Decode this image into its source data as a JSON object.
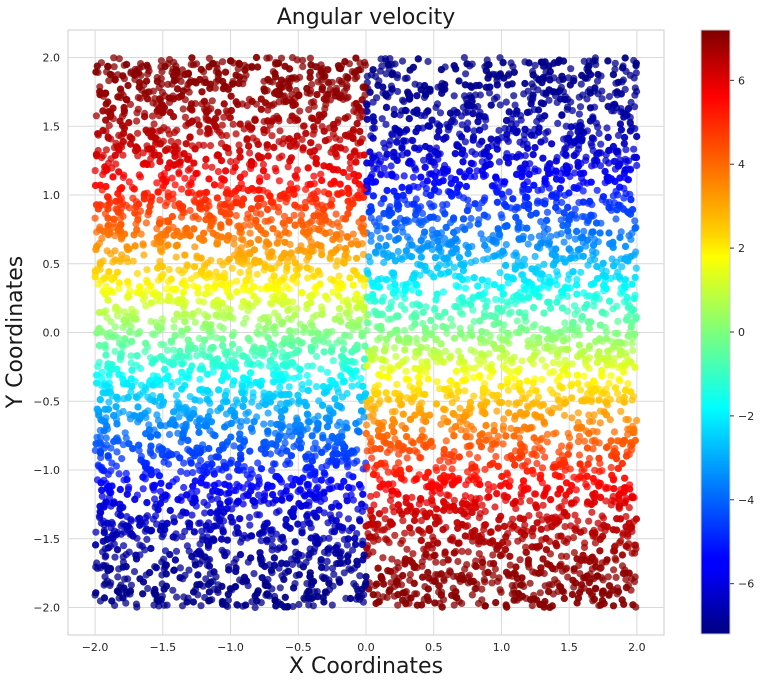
{
  "chart_data": {
    "type": "scatter",
    "title": "Angular velocity",
    "xlabel": "X Coordinates",
    "ylabel": "Y Coordinates",
    "xlim": [
      -2.2,
      2.2
    ],
    "ylim": [
      -2.2,
      2.2
    ],
    "xticks": [
      -2.0,
      -1.5,
      -1.0,
      -0.5,
      0.0,
      0.5,
      1.0,
      1.5,
      2.0
    ],
    "xtick_labels": [
      "−2.0",
      "−1.5",
      "−1.0",
      "−0.5",
      "0.0",
      "0.5",
      "1.0",
      "1.5",
      "2.0"
    ],
    "yticks": [
      -2.0,
      -1.5,
      -1.0,
      -0.5,
      0.0,
      0.5,
      1.0,
      1.5,
      2.0
    ],
    "ytick_labels": [
      "−2.0",
      "−1.5",
      "−1.0",
      "−0.5",
      "0.0",
      "0.5",
      "1.0",
      "1.5",
      "2.0"
    ],
    "grid": true,
    "colormap": "jet",
    "point_domain": {
      "x": [
        -2.0,
        2.0
      ],
      "y": [
        -2.0,
        2.0
      ]
    },
    "color_field": "value = 7.1 * sin(pi * y / 4) for x < 0; value = -7.1 * sin(pi * y / 4) for x >= 0",
    "colorbar": {
      "range": [
        -7.2,
        7.2
      ],
      "ticks": [
        -6,
        -4,
        -2,
        0,
        2,
        4,
        6
      ],
      "tick_labels": [
        "−6",
        "−4",
        "−2",
        "0",
        "2",
        "4",
        "6"
      ]
    }
  }
}
